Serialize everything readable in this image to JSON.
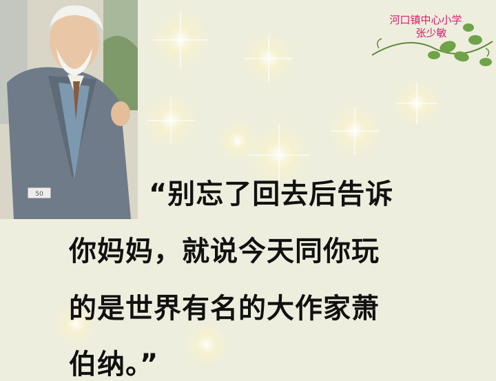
{
  "slide": {
    "school": "河口镇中心小学",
    "author": "张少敏",
    "quote_lines": [
      "“别忘了回去后告诉",
      "你妈妈，就说今天同你玩",
      "的是世界有名的大作家萧",
      "伯纳。”"
    ],
    "illustration_number": "50",
    "colors": {
      "background": "#eeeede",
      "credit": "#d81a6c",
      "text": "#111111"
    }
  }
}
